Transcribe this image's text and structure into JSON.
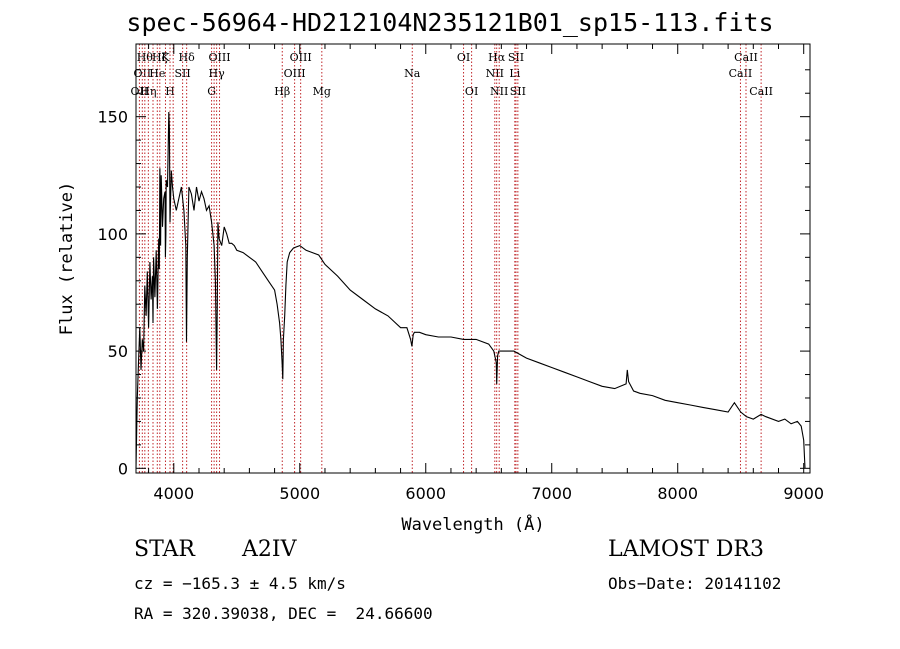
{
  "chart_data": {
    "type": "line",
    "title": "spec-56964-HD212104N235121B01_sp15-113.fits",
    "xlabel": "Wavelength (Å)",
    "ylabel": "Flux (relative)",
    "xlim": [
      3700,
      9050
    ],
    "ylim": [
      -2,
      181
    ],
    "x_ticks": [
      4000,
      5000,
      6000,
      7000,
      8000,
      9000
    ],
    "x_tick_labels": [
      "4000",
      "5000",
      "6000",
      "7000",
      "8000",
      "9000"
    ],
    "y_ticks": [
      0,
      50,
      100,
      150
    ],
    "y_tick_labels": [
      "0",
      "50",
      "100",
      "150"
    ],
    "grid": false,
    "series": [
      {
        "name": "spectrum",
        "x": [
          3700,
          3710,
          3720,
          3730,
          3740,
          3750,
          3760,
          3770,
          3780,
          3790,
          3800,
          3810,
          3820,
          3830,
          3835,
          3840,
          3850,
          3860,
          3870,
          3880,
          3885,
          3890,
          3895,
          3900,
          3910,
          3920,
          3930,
          3933,
          3937,
          3940,
          3950,
          3960,
          3965,
          3970,
          3975,
          3980,
          3990,
          4000,
          4020,
          4040,
          4060,
          4080,
          4095,
          4101,
          4107,
          4120,
          4140,
          4160,
          4180,
          4200,
          4220,
          4240,
          4260,
          4280,
          4300,
          4320,
          4330,
          4340,
          4345,
          4350,
          4360,
          4380,
          4400,
          4420,
          4440,
          4460,
          4480,
          4500,
          4550,
          4600,
          4650,
          4700,
          4750,
          4800,
          4820,
          4840,
          4850,
          4860,
          4865,
          4870,
          4880,
          4890,
          4900,
          4920,
          4950,
          5000,
          5050,
          5100,
          5150,
          5200,
          5300,
          5400,
          5500,
          5600,
          5700,
          5800,
          5850,
          5880,
          5890,
          5900,
          5910,
          5950,
          6000,
          6100,
          6200,
          6300,
          6400,
          6500,
          6540,
          6560,
          6563,
          6570,
          6580,
          6600,
          6700,
          6800,
          6900,
          7000,
          7100,
          7200,
          7300,
          7400,
          7500,
          7590,
          7600,
          7610,
          7650,
          7700,
          7800,
          7900,
          8000,
          8100,
          8200,
          8300,
          8400,
          8450,
          8500,
          8545,
          8600,
          8662,
          8700,
          8800,
          8850,
          8900,
          8950,
          8980,
          9000,
          9010
        ],
        "y": [
          0,
          30,
          45,
          60,
          42,
          55,
          50,
          78,
          65,
          84,
          60,
          88,
          72,
          82,
          62,
          90,
          73,
          93,
          68,
          98,
          85,
          128,
          95,
          125,
          103,
          115,
          118,
          90,
          100,
          123,
          120,
          152,
          145,
          105,
          115,
          127,
          120,
          115,
          110,
          115,
          120,
          110,
          95,
          54,
          90,
          120,
          117,
          110,
          120,
          114,
          118,
          115,
          110,
          112,
          105,
          95,
          80,
          42,
          70,
          105,
          98,
          95,
          103,
          100,
          96,
          96,
          95,
          93,
          92,
          90,
          88,
          84,
          80,
          76,
          70,
          62,
          55,
          45,
          38,
          55,
          65,
          78,
          88,
          92,
          94,
          95,
          93,
          92,
          91,
          87,
          82,
          76,
          72,
          68,
          65,
          60,
          60,
          55,
          52,
          57,
          58,
          58,
          57,
          56,
          56,
          55,
          55,
          53,
          50,
          45,
          36,
          48,
          50,
          50,
          50,
          47,
          45,
          43,
          41,
          39,
          37,
          35,
          34,
          36,
          42,
          37,
          33,
          32,
          31,
          29,
          28,
          27,
          26,
          25,
          24,
          28,
          24,
          22,
          21,
          23,
          22,
          20,
          21,
          19,
          20,
          18,
          12,
          0
        ]
      }
    ],
    "line_markers": [
      {
        "wl": 3727,
        "label": "OII",
        "row": 3
      },
      {
        "wl": 3750,
        "label": "OII",
        "row": 2
      },
      {
        "wl": 3770,
        "label": "Hθ",
        "row": 1
      },
      {
        "wl": 3798,
        "label": "Hη",
        "row": 3
      },
      {
        "wl": 3835,
        "label": "",
        "row": 0
      },
      {
        "wl": 3869,
        "label": "He",
        "row": 2
      },
      {
        "wl": 3889,
        "label": "Hζ",
        "row": 1
      },
      {
        "wl": 3934,
        "label": "K",
        "row": 1
      },
      {
        "wl": 3970,
        "label": "H",
        "row": 3
      },
      {
        "wl": 3995,
        "label": "",
        "row": 0
      },
      {
        "wl": 4070,
        "label": "SII",
        "row": 2
      },
      {
        "wl": 4102,
        "label": "Hδ",
        "row": 1
      },
      {
        "wl": 4300,
        "label": "G",
        "row": 3
      },
      {
        "wl": 4320,
        "label": "",
        "row": 0
      },
      {
        "wl": 4340,
        "label": "Hγ",
        "row": 2
      },
      {
        "wl": 4363,
        "label": "OIII",
        "row": 1
      },
      {
        "wl": 4861,
        "label": "Hβ",
        "row": 3
      },
      {
        "wl": 4959,
        "label": "OIII",
        "row": 2
      },
      {
        "wl": 5007,
        "label": "OIII",
        "row": 1
      },
      {
        "wl": 5175,
        "label": "Mg",
        "row": 3
      },
      {
        "wl": 5893,
        "label": "Na",
        "row": 2
      },
      {
        "wl": 6300,
        "label": "OI",
        "row": 1
      },
      {
        "wl": 6364,
        "label": "OI",
        "row": 3
      },
      {
        "wl": 6548,
        "label": "NII",
        "row": 2
      },
      {
        "wl": 6563,
        "label": "Hα",
        "row": 1
      },
      {
        "wl": 6583,
        "label": "NII",
        "row": 3
      },
      {
        "wl": 6707,
        "label": "Li",
        "row": 2
      },
      {
        "wl": 6716,
        "label": "SII",
        "row": 1
      },
      {
        "wl": 6731,
        "label": "SII",
        "row": 3
      },
      {
        "wl": 8498,
        "label": "CaII",
        "row": 2
      },
      {
        "wl": 8542,
        "label": "CaII",
        "row": 1
      },
      {
        "wl": 8662,
        "label": "CaII",
        "row": 3
      }
    ]
  },
  "info": {
    "class": "STAR",
    "subclass": "A2IV",
    "survey": "LAMOST DR3",
    "cz": "cz = −165.3 ± 4.5 km/s",
    "obs_date": "Obs−Date: 20141102",
    "radec": "RA = 320.39038, DEC =  24.66600"
  }
}
